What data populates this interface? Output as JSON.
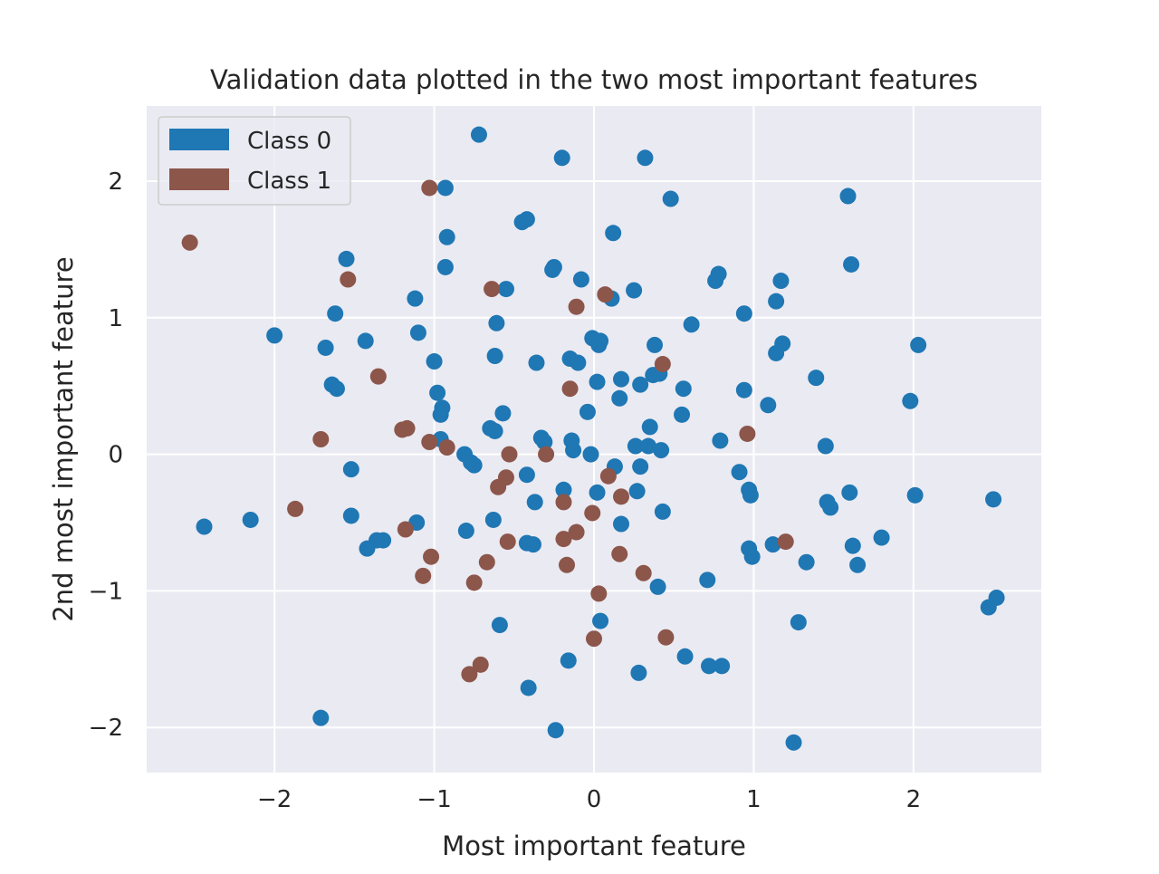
{
  "chart_data": {
    "type": "scatter",
    "title": "Validation data plotted in the two most important features",
    "xlabel": "Most important feature",
    "ylabel": "2nd most important feature",
    "xlim": [
      -2.8,
      2.8
    ],
    "ylim": [
      -2.33,
      2.55
    ],
    "xticks": [
      -2,
      -1,
      0,
      1,
      2
    ],
    "yticks": [
      -2,
      -1,
      0,
      1,
      2
    ],
    "xtick_labels": [
      "−2",
      "−1",
      "0",
      "1",
      "2"
    ],
    "ytick_labels": [
      "−2",
      "−1",
      "0",
      "1",
      "2"
    ],
    "grid": true,
    "legend_position": "top-left",
    "series": [
      {
        "name": "Class 0",
        "color": "#1f77b4",
        "points": [
          [
            -0.72,
            2.34
          ],
          [
            -0.2,
            2.17
          ],
          [
            0.32,
            2.17
          ],
          [
            0.48,
            1.87
          ],
          [
            1.59,
            1.89
          ],
          [
            -0.93,
            1.95
          ],
          [
            -0.45,
            1.7
          ],
          [
            -0.42,
            1.72
          ],
          [
            0.12,
            1.62
          ],
          [
            -0.92,
            1.59
          ],
          [
            1.61,
            1.39
          ],
          [
            -1.55,
            1.43
          ],
          [
            -0.93,
            1.37
          ],
          [
            -0.25,
            1.37
          ],
          [
            -0.26,
            1.35
          ],
          [
            -0.08,
            1.28
          ],
          [
            0.78,
            1.32
          ],
          [
            0.76,
            1.27
          ],
          [
            1.17,
            1.27
          ],
          [
            -0.55,
            1.21
          ],
          [
            0.25,
            1.2
          ],
          [
            -1.12,
            1.14
          ],
          [
            0.11,
            1.14
          ],
          [
            1.14,
            1.12
          ],
          [
            -1.62,
            1.03
          ],
          [
            0.94,
            1.03
          ],
          [
            -0.61,
            0.96
          ],
          [
            0.61,
            0.95
          ],
          [
            -2.0,
            0.87
          ],
          [
            -1.1,
            0.89
          ],
          [
            -1.43,
            0.83
          ],
          [
            -0.01,
            0.85
          ],
          [
            0.03,
            0.8
          ],
          [
            0.04,
            0.83
          ],
          [
            0.38,
            0.8
          ],
          [
            1.18,
            0.81
          ],
          [
            1.14,
            0.74
          ],
          [
            2.03,
            0.8
          ],
          [
            -1.68,
            0.78
          ],
          [
            -0.62,
            0.72
          ],
          [
            -1.0,
            0.68
          ],
          [
            -0.36,
            0.67
          ],
          [
            -0.15,
            0.7
          ],
          [
            -0.1,
            0.67
          ],
          [
            0.37,
            0.58
          ],
          [
            0.41,
            0.59
          ],
          [
            1.39,
            0.56
          ],
          [
            -1.64,
            0.51
          ],
          [
            -1.61,
            0.48
          ],
          [
            0.02,
            0.53
          ],
          [
            0.17,
            0.55
          ],
          [
            0.29,
            0.51
          ],
          [
            0.56,
            0.48
          ],
          [
            0.94,
            0.47
          ],
          [
            -0.98,
            0.45
          ],
          [
            0.16,
            0.41
          ],
          [
            1.98,
            0.39
          ],
          [
            -0.95,
            0.34
          ],
          [
            -0.96,
            0.29
          ],
          [
            -0.57,
            0.3
          ],
          [
            -0.04,
            0.31
          ],
          [
            0.55,
            0.29
          ],
          [
            1.09,
            0.36
          ],
          [
            -0.65,
            0.19
          ],
          [
            -0.62,
            0.17
          ],
          [
            0.35,
            0.2
          ],
          [
            -0.33,
            0.12
          ],
          [
            -0.31,
            0.09
          ],
          [
            -0.96,
            0.11
          ],
          [
            -0.14,
            0.1
          ],
          [
            -0.13,
            0.03
          ],
          [
            0.26,
            0.06
          ],
          [
            0.34,
            0.06
          ],
          [
            0.42,
            0.03
          ],
          [
            0.79,
            0.1
          ],
          [
            1.45,
            0.06
          ],
          [
            -0.81,
            0.0
          ],
          [
            -0.02,
            0.0
          ],
          [
            -0.77,
            -0.06
          ],
          [
            -0.75,
            -0.08
          ],
          [
            0.13,
            -0.09
          ],
          [
            0.29,
            -0.09
          ],
          [
            -1.52,
            -0.11
          ],
          [
            -0.42,
            -0.15
          ],
          [
            0.91,
            -0.13
          ],
          [
            -0.19,
            -0.26
          ],
          [
            0.02,
            -0.28
          ],
          [
            0.27,
            -0.27
          ],
          [
            0.97,
            -0.26
          ],
          [
            0.98,
            -0.3
          ],
          [
            1.6,
            -0.28
          ],
          [
            2.01,
            -0.3
          ],
          [
            2.5,
            -0.33
          ],
          [
            -0.37,
            -0.35
          ],
          [
            1.46,
            -0.35
          ],
          [
            1.48,
            -0.39
          ],
          [
            -2.44,
            -0.53
          ],
          [
            -2.15,
            -0.48
          ],
          [
            -1.52,
            -0.45
          ],
          [
            -1.11,
            -0.5
          ],
          [
            -0.63,
            -0.48
          ],
          [
            0.43,
            -0.42
          ],
          [
            0.17,
            -0.51
          ],
          [
            -0.8,
            -0.56
          ],
          [
            1.8,
            -0.61
          ],
          [
            -1.36,
            -0.63
          ],
          [
            -1.32,
            -0.63
          ],
          [
            -1.42,
            -0.69
          ],
          [
            -0.42,
            -0.65
          ],
          [
            -0.38,
            -0.66
          ],
          [
            0.97,
            -0.69
          ],
          [
            0.99,
            -0.75
          ],
          [
            1.12,
            -0.66
          ],
          [
            1.62,
            -0.67
          ],
          [
            1.33,
            -0.79
          ],
          [
            1.65,
            -0.81
          ],
          [
            0.71,
            -0.92
          ],
          [
            0.4,
            -0.97
          ],
          [
            0.04,
            -1.22
          ],
          [
            -0.59,
            -1.25
          ],
          [
            1.28,
            -1.23
          ],
          [
            2.52,
            -1.05
          ],
          [
            2.47,
            -1.12
          ],
          [
            -0.16,
            -1.51
          ],
          [
            0.57,
            -1.48
          ],
          [
            0.72,
            -1.55
          ],
          [
            0.8,
            -1.55
          ],
          [
            0.28,
            -1.6
          ],
          [
            -0.41,
            -1.71
          ],
          [
            -1.71,
            -1.93
          ],
          [
            -0.24,
            -2.02
          ],
          [
            1.25,
            -2.11
          ]
        ]
      },
      {
        "name": "Class 1",
        "color": "#8c564b",
        "points": [
          [
            -2.53,
            1.55
          ],
          [
            -1.03,
            1.95
          ],
          [
            -1.54,
            1.28
          ],
          [
            -0.64,
            1.21
          ],
          [
            0.07,
            1.17
          ],
          [
            -0.11,
            1.08
          ],
          [
            -1.35,
            0.57
          ],
          [
            0.43,
            0.66
          ],
          [
            -0.15,
            0.48
          ],
          [
            -1.2,
            0.18
          ],
          [
            -1.17,
            0.19
          ],
          [
            -1.71,
            0.11
          ],
          [
            -1.03,
            0.09
          ],
          [
            -0.92,
            0.05
          ],
          [
            -0.53,
            0.0
          ],
          [
            -0.3,
            0.0
          ],
          [
            0.96,
            0.15
          ],
          [
            0.09,
            -0.16
          ],
          [
            -0.55,
            -0.17
          ],
          [
            -0.6,
            -0.24
          ],
          [
            0.17,
            -0.31
          ],
          [
            -0.19,
            -0.35
          ],
          [
            -1.87,
            -0.4
          ],
          [
            -0.01,
            -0.43
          ],
          [
            -1.18,
            -0.55
          ],
          [
            -0.11,
            -0.57
          ],
          [
            -0.54,
            -0.64
          ],
          [
            -0.19,
            -0.62
          ],
          [
            1.2,
            -0.64
          ],
          [
            -1.02,
            -0.75
          ],
          [
            0.16,
            -0.73
          ],
          [
            -0.67,
            -0.79
          ],
          [
            -0.17,
            -0.81
          ],
          [
            -1.07,
            -0.89
          ],
          [
            0.31,
            -0.87
          ],
          [
            -0.75,
            -0.94
          ],
          [
            0.03,
            -1.02
          ],
          [
            0.45,
            -1.34
          ],
          [
            0.0,
            -1.35
          ],
          [
            -0.71,
            -1.54
          ],
          [
            -0.78,
            -1.61
          ]
        ]
      }
    ]
  }
}
